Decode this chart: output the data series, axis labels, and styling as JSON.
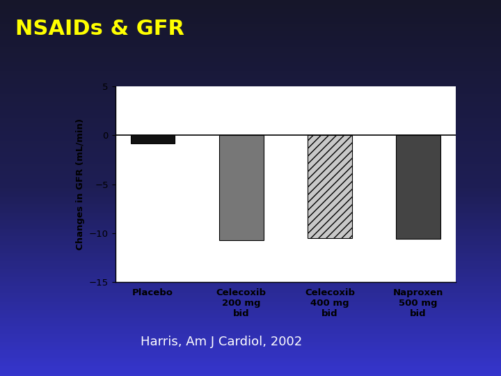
{
  "title": "NSAIDs & GFR",
  "title_color": "#ffff00",
  "title_fontsize": 22,
  "citation": "Harris, Am J Cardiol, 2002",
  "citation_color": "#ffffff",
  "citation_fontsize": 13,
  "chart_bg": "#ffffff",
  "categories": [
    "Placebo",
    "Celecoxib\n200 mg\nbid",
    "Celecoxib\n400 mg\nbid",
    "Naproxen\n500 mg\nbid"
  ],
  "values": [
    -0.8,
    -10.7,
    -10.5,
    -10.6
  ],
  "bar_colors": [
    "#111111",
    "#777777",
    "#c8c8c8",
    "#444444"
  ],
  "bar_hatches": [
    null,
    null,
    "///",
    null
  ],
  "ylabel": "Changes in GFR (mL/min)",
  "ylim": [
    -15,
    5
  ],
  "yticks": [
    -15,
    -10,
    -5,
    0,
    5
  ],
  "grad_top": "#16162a",
  "grad_mid": "#1e1e55",
  "grad_bot": "#3535cc"
}
